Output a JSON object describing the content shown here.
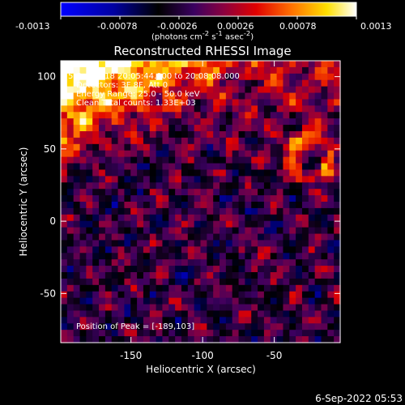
{
  "colorbar": {
    "colormap": "RHESSI blue-black-red-yellow-white",
    "min": -0.0013,
    "max": 0.0013,
    "tick_labels": [
      "-0.0013",
      "-0.00078",
      "-0.00026",
      "0.00026",
      "0.00078",
      "0.0013"
    ],
    "unit_label": "(photons cm<sup>-2</sup> s<sup>-1</sup> asec<sup>-2</sup>)"
  },
  "plot": {
    "title": "Reconstructed RHESSI Image",
    "xlabel": "Heliocentric X (arcsec)",
    "ylabel": "Heliocentric Y (arcsec)",
    "annotations": [
      "5-Sep-2018 20:05:44.000 to 20:08:08.000",
      "Detectors: 3F 8F, Att 0",
      "Energy Range: 25.0 - 50.0 keV",
      "Clean      Total counts: 1.33E+03"
    ],
    "peak_label": "Position of Peak = [-189,103]"
  },
  "footer": {
    "timestamp": "6-Sep-2022 05:53"
  },
  "chart_data": {
    "type": "heatmap",
    "title": "Reconstructed RHESSI Image",
    "xlabel": "Heliocentric X (arcsec)",
    "ylabel": "Heliocentric Y (arcsec)",
    "xlim": [
      -199,
      -4
    ],
    "ylim": [
      -84,
      111
    ],
    "xticks": [
      -150,
      -100,
      -50
    ],
    "yticks": [
      -50,
      0,
      50,
      100
    ],
    "clim": [
      -0.0013,
      0.0013
    ],
    "colorbar_ticks": [
      -0.0013,
      -0.00078,
      -0.00026,
      0.00026,
      0.00078,
      0.0013
    ],
    "peak_position": [
      -189,
      103
    ],
    "total_counts": "1.33E+03",
    "energy_range_keV": [
      25.0,
      50.0
    ],
    "detectors": "3F 8F",
    "attenuator": 0,
    "time_range": [
      "5-Sep-2018 20:05:44.000",
      "20:08:08.000"
    ]
  }
}
